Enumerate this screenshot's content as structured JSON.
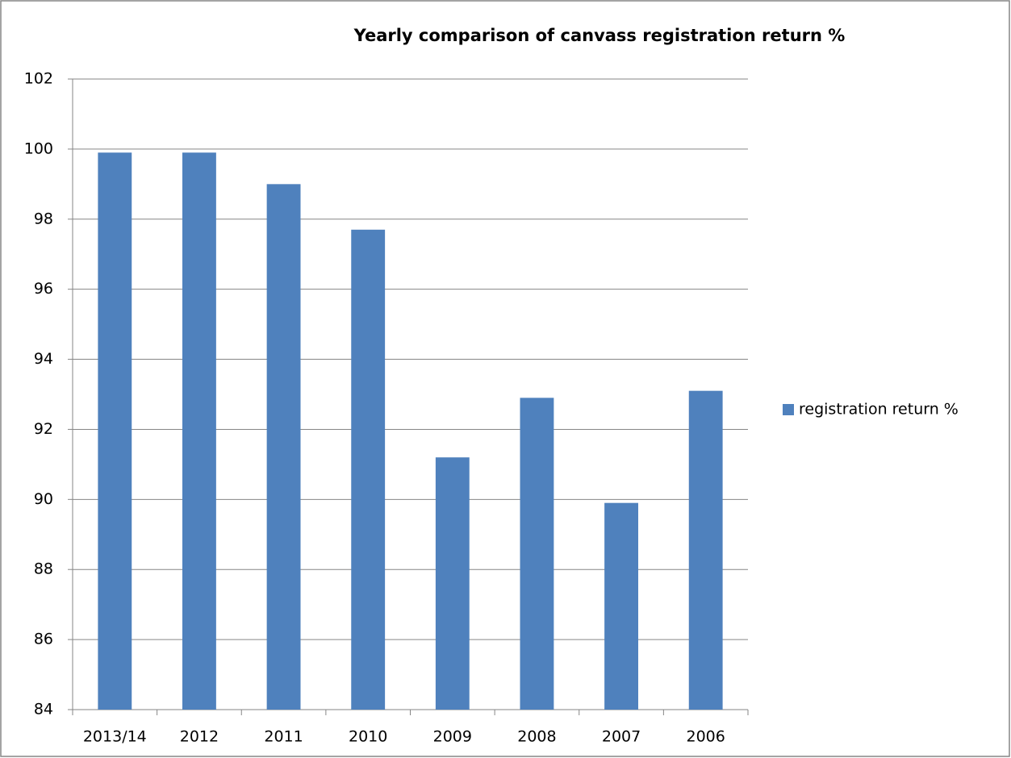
{
  "chart_data": {
    "type": "bar",
    "title": "Yearly comparison of canvass registration return %",
    "categories": [
      "2013/14",
      "2012",
      "2011",
      "2010",
      "2009",
      "2008",
      "2007",
      "2006"
    ],
    "series": [
      {
        "name": "registration return %",
        "color": "#4f81bd",
        "values": [
          99.9,
          99.9,
          99.0,
          97.7,
          91.2,
          92.9,
          89.9,
          93.1
        ]
      }
    ],
    "ylim": [
      84,
      102
    ],
    "yticks": [
      84,
      86,
      88,
      90,
      92,
      94,
      96,
      98,
      100,
      102
    ],
    "grid": true,
    "legend": "right"
  }
}
